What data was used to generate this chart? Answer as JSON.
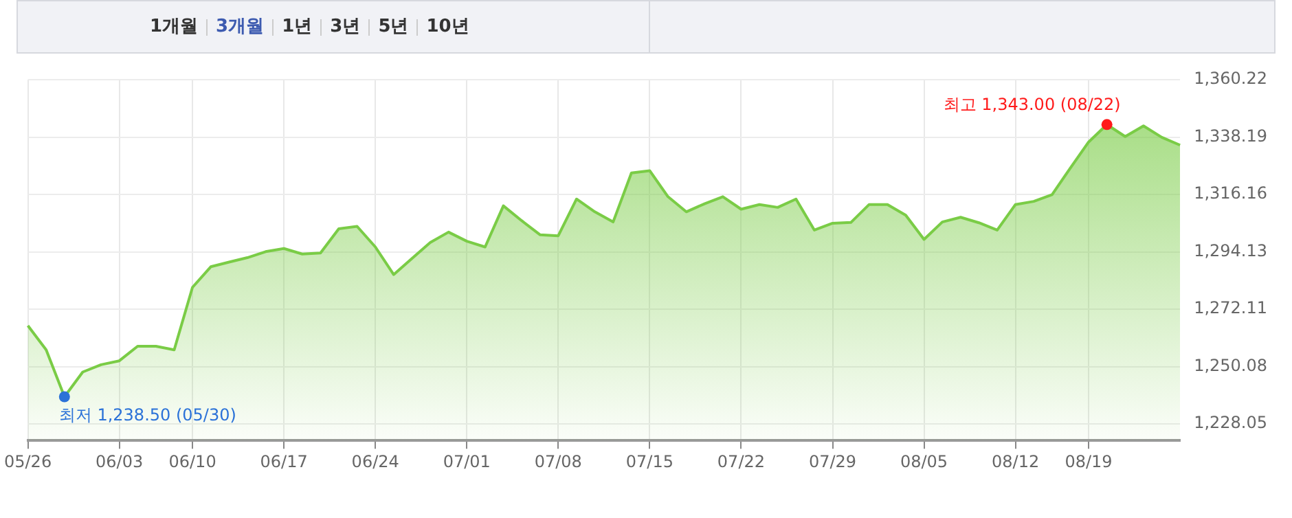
{
  "chart_data": {
    "type": "area",
    "categories": [
      "05/26",
      null,
      null,
      null,
      null,
      "06/03",
      null,
      null,
      null,
      "06/10",
      null,
      null,
      null,
      null,
      "06/17",
      null,
      null,
      null,
      null,
      "06/24",
      null,
      null,
      null,
      null,
      "07/01",
      null,
      null,
      null,
      null,
      "07/08",
      null,
      null,
      null,
      null,
      "07/15",
      null,
      null,
      null,
      null,
      "07/22",
      null,
      null,
      null,
      null,
      "07/29",
      null,
      null,
      null,
      null,
      "08/05",
      null,
      null,
      null,
      null,
      "08/12",
      null,
      null,
      null,
      "08/19",
      null,
      null,
      null,
      null,
      null
    ],
    "series": [
      {
        "color": "#7acc46",
        "values": [
          1265.8,
          1256.5,
          1238.5,
          1248.0,
          1250.8,
          1252.3,
          1257.9,
          1257.9,
          1256.5,
          1280.5,
          1288.4,
          1290.2,
          1291.9,
          1294.2,
          1295.4,
          1293.3,
          1293.7,
          1303.0,
          1303.9,
          1296.0,
          1285.4,
          1291.6,
          1297.7,
          1301.7,
          1298.2,
          1296.0,
          1311.8,
          1306.1,
          1300.7,
          1300.3,
          1314.4,
          1309.5,
          1305.6,
          1324.4,
          1325.3,
          1315.3,
          1309.5,
          1312.6,
          1315.3,
          1310.5,
          1312.3,
          1311.2,
          1314.4,
          1302.5,
          1305.1,
          1305.4,
          1312.3,
          1312.3,
          1308.2,
          1298.9,
          1305.6,
          1307.4,
          1305.3,
          1302.5,
          1312.3,
          1313.5,
          1316.1,
          1326.3,
          1336.3,
          1343.0,
          1338.4,
          1342.5,
          1338.1,
          1335.1
        ]
      },
      {
        "type": "scatter",
        "colors": [
          null,
          null,
          "#2b72d8",
          null,
          null,
          null,
          null,
          null,
          null,
          null,
          null,
          null,
          null,
          null,
          null,
          null,
          null,
          null,
          null,
          null,
          null,
          null,
          null,
          null,
          null,
          null,
          null,
          null,
          null,
          null,
          null,
          null,
          null,
          null,
          null,
          null,
          null,
          null,
          null,
          null,
          null,
          null,
          null,
          null,
          null,
          null,
          null,
          null,
          null,
          null,
          null,
          null,
          null,
          null,
          null,
          null,
          null,
          null,
          null,
          "#ff1a1a",
          null,
          null,
          null,
          null
        ],
        "values": [
          null,
          null,
          1238.5,
          null,
          null,
          null,
          null,
          null,
          null,
          null,
          null,
          null,
          null,
          null,
          null,
          null,
          null,
          null,
          null,
          null,
          null,
          null,
          null,
          null,
          null,
          null,
          null,
          null,
          null,
          null,
          null,
          null,
          null,
          null,
          null,
          null,
          null,
          null,
          null,
          null,
          null,
          null,
          null,
          null,
          null,
          null,
          null,
          null,
          null,
          null,
          null,
          null,
          null,
          null,
          null,
          null,
          null,
          null,
          null,
          1343.0,
          null,
          null,
          null,
          null
        ]
      }
    ],
    "ylim": [
      1221.7,
      1360.22
    ],
    "yticks": [
      {
        "value": 1228.05,
        "label": "1,228.05"
      },
      {
        "value": 1250.08,
        "label": "1,250.08"
      },
      {
        "value": 1272.11,
        "label": "1,272.11"
      },
      {
        "value": 1294.13,
        "label": "1,294.13"
      },
      {
        "value": 1316.16,
        "label": "1,316.16"
      },
      {
        "value": 1338.19,
        "label": "1,338.19"
      },
      {
        "value": 1360.22,
        "label": "1,360.22"
      }
    ],
    "grid": true,
    "annotations": [
      "1개월",
      "3개월",
      "1년",
      "3년",
      "5년",
      "10년",
      "최저 1,238.50 (05/30)",
      "최고 1,343.00 (08/22)"
    ]
  }
}
